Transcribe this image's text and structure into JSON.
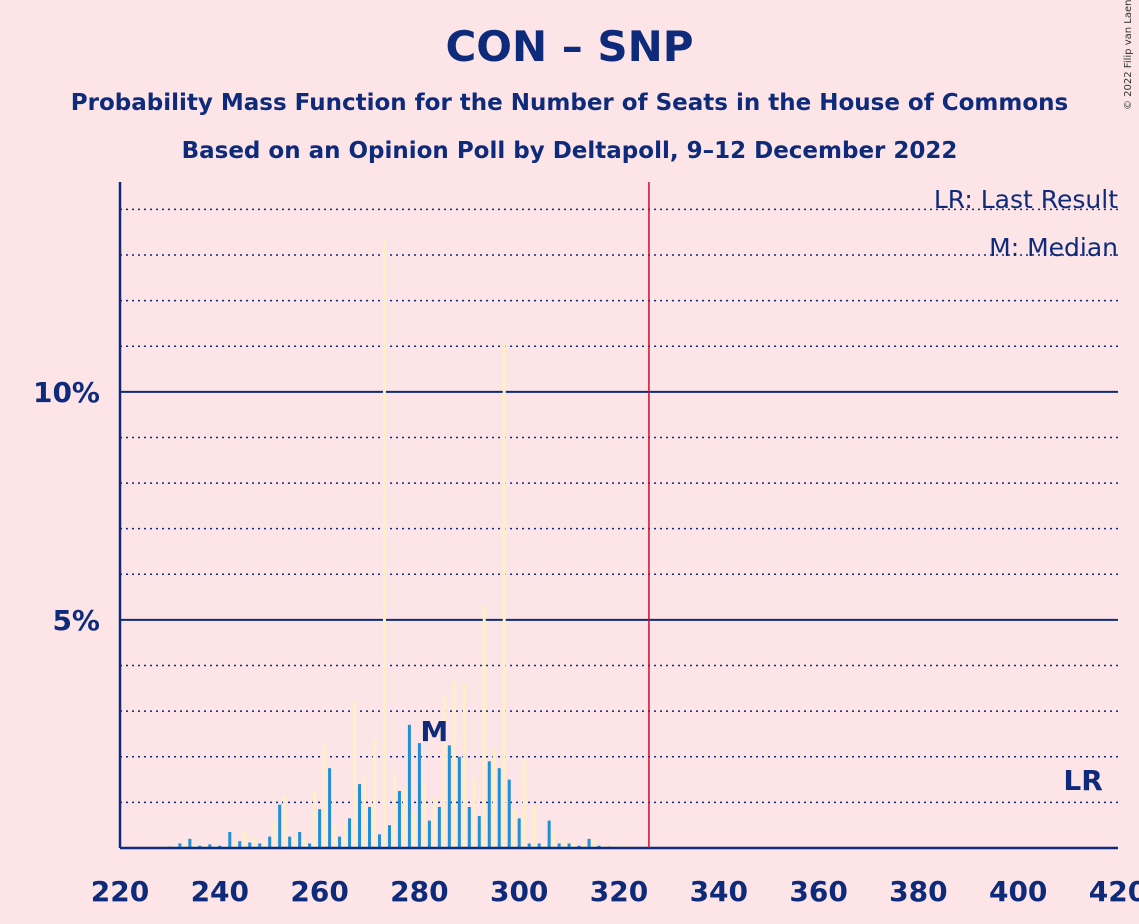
{
  "title": "CON – SNP",
  "subtitle": "Probability Mass Function for the Number of Seats in the House of Commons",
  "subtitle2": "Based on an Opinion Poll by Deltapoll, 9–12 December 2022",
  "copyright": "© 2022 Filip van Laenen",
  "legend": {
    "last_result": "LR: Last Result",
    "median": "M: Median"
  },
  "colors": {
    "background": "#fde4e7",
    "blue": "#1f8fd6",
    "yellow": "#fdf1bd",
    "text": "#0d2b7a",
    "majority": "#c8102e"
  },
  "chart_data": {
    "type": "bar",
    "xlim": [
      220,
      420
    ],
    "ylim": [
      0,
      14.6
    ],
    "x_ticks": [
      "220",
      "240",
      "260",
      "280",
      "300",
      "320",
      "340",
      "360",
      "380",
      "400",
      "420"
    ],
    "y_ticks": [
      {
        "value": 5,
        "label": "5%"
      },
      {
        "value": 10,
        "label": "10%"
      }
    ],
    "grid": true,
    "majority_line": 326,
    "median": {
      "seat": 283,
      "label": "M"
    },
    "last_result": {
      "seat": 413,
      "label": "LR"
    },
    "series": [
      {
        "name": "probability",
        "color": "blue",
        "points": [
          [
            224,
            0.02
          ],
          [
            226,
            0.02
          ],
          [
            228,
            0.02
          ],
          [
            230,
            0.03
          ],
          [
            232,
            0.1
          ],
          [
            234,
            0.2
          ],
          [
            236,
            0.05
          ],
          [
            238,
            0.08
          ],
          [
            240,
            0.05
          ],
          [
            242,
            0.35
          ],
          [
            244,
            0.15
          ],
          [
            246,
            0.12
          ],
          [
            248,
            0.1
          ],
          [
            250,
            0.25
          ],
          [
            252,
            0.95
          ],
          [
            254,
            0.25
          ],
          [
            256,
            0.35
          ],
          [
            258,
            0.1
          ],
          [
            260,
            0.85
          ],
          [
            262,
            1.75
          ],
          [
            264,
            0.25
          ],
          [
            266,
            0.65
          ],
          [
            268,
            1.4
          ],
          [
            270,
            0.9
          ],
          [
            272,
            0.3
          ],
          [
            274,
            0.5
          ],
          [
            276,
            1.25
          ],
          [
            278,
            2.7
          ],
          [
            280,
            2.3
          ],
          [
            282,
            0.6
          ],
          [
            284,
            0.9
          ],
          [
            286,
            2.25
          ],
          [
            288,
            2.0
          ],
          [
            290,
            0.9
          ],
          [
            292,
            0.7
          ],
          [
            294,
            1.9
          ],
          [
            296,
            1.75
          ],
          [
            298,
            1.5
          ],
          [
            300,
            0.65
          ],
          [
            302,
            0.1
          ],
          [
            304,
            0.1
          ],
          [
            306,
            0.6
          ],
          [
            308,
            0.1
          ],
          [
            310,
            0.1
          ],
          [
            312,
            0.05
          ],
          [
            314,
            0.2
          ],
          [
            316,
            0.05
          ],
          [
            318,
            0.03
          ],
          [
            320,
            0.02
          ],
          [
            322,
            0.02
          ]
        ]
      },
      {
        "name": "probability",
        "color": "yellow",
        "points": [
          [
            225,
            0.03
          ],
          [
            227,
            0.03
          ],
          [
            229,
            0.05
          ],
          [
            231,
            0.05
          ],
          [
            233,
            0.15
          ],
          [
            235,
            0.1
          ],
          [
            237,
            0.1
          ],
          [
            239,
            0.05
          ],
          [
            241,
            0.08
          ],
          [
            243,
            0.15
          ],
          [
            245,
            0.35
          ],
          [
            247,
            0.25
          ],
          [
            249,
            0.15
          ],
          [
            251,
            0.6
          ],
          [
            253,
            1.15
          ],
          [
            255,
            0.25
          ],
          [
            257,
            0.2
          ],
          [
            259,
            1.25
          ],
          [
            261,
            2.25
          ],
          [
            263,
            0.5
          ],
          [
            265,
            0.55
          ],
          [
            267,
            3.2
          ],
          [
            269,
            1.6
          ],
          [
            271,
            2.4
          ],
          [
            273,
            13.35
          ],
          [
            275,
            1.6
          ],
          [
            277,
            1.3
          ],
          [
            279,
            0.8
          ],
          [
            281,
            1.4
          ],
          [
            283,
            1.1
          ],
          [
            285,
            3.35
          ],
          [
            287,
            3.65
          ],
          [
            289,
            3.6
          ],
          [
            291,
            1.55
          ],
          [
            293,
            5.3
          ],
          [
            295,
            2.15
          ],
          [
            297,
            11.05
          ],
          [
            299,
            0.85
          ],
          [
            301,
            1.95
          ],
          [
            303,
            0.95
          ],
          [
            305,
            0.1
          ],
          [
            307,
            0.35
          ],
          [
            309,
            0.2
          ],
          [
            311,
            0.1
          ],
          [
            313,
            0.1
          ],
          [
            315,
            0.2
          ],
          [
            317,
            0.05
          ],
          [
            319,
            0.08
          ],
          [
            321,
            0.08
          ],
          [
            323,
            0.05
          ]
        ]
      }
    ]
  }
}
